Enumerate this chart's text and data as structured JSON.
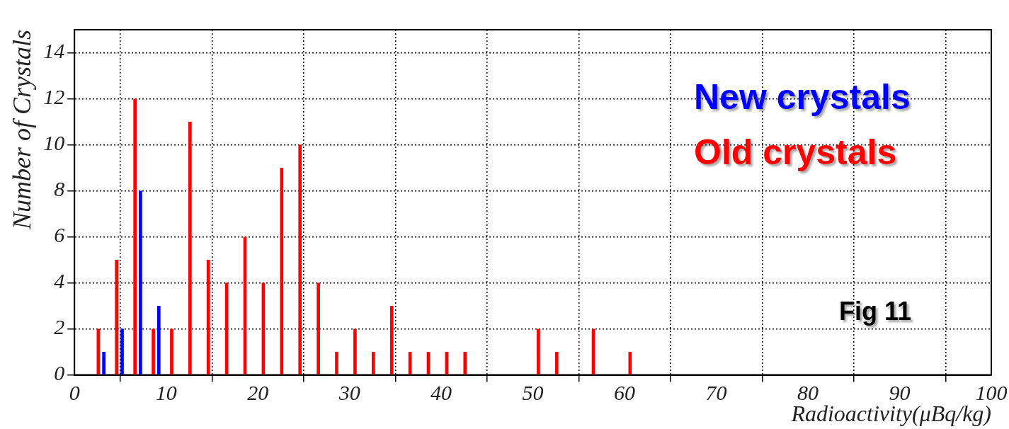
{
  "chart_data": {
    "type": "histogram",
    "xlabel": "Radioactivity(μBq/kg)",
    "ylabel": "Number of Crystals",
    "bins": [
      2,
      4,
      6,
      8,
      10,
      12,
      14,
      16,
      18,
      20,
      22,
      24,
      26,
      28,
      30,
      32,
      34,
      36,
      38,
      40,
      42,
      44,
      46,
      48,
      50,
      52,
      54,
      56,
      58,
      60,
      62
    ],
    "series": [
      {
        "name": "Old crystals",
        "color": "#ff0000",
        "values": [
          2,
          5,
          12,
          2,
          2,
          11,
          5,
          4,
          6,
          4,
          9,
          10,
          4,
          1,
          2,
          1,
          3,
          1,
          1,
          1,
          1,
          0,
          0,
          0,
          2,
          1,
          0,
          2,
          0,
          1
        ]
      },
      {
        "name": "New crystals",
        "color": "#0000ff",
        "values": [
          1,
          2,
          8,
          3,
          0,
          0,
          0,
          0,
          0,
          0,
          0,
          0,
          0,
          0,
          0,
          0,
          0,
          0,
          0,
          0,
          0,
          0,
          0,
          0,
          0,
          0,
          0,
          0,
          0,
          0
        ]
      }
    ],
    "xlim": [
      0,
      100
    ],
    "xticks": [
      0,
      10,
      20,
      30,
      40,
      50,
      60,
      70,
      80,
      90,
      100
    ],
    "ylim": [
      0,
      15
    ],
    "yticks": [
      0,
      2,
      4,
      6,
      8,
      10,
      12,
      14
    ],
    "grid": true,
    "legend": "top right",
    "annotations": [
      "Fig 11"
    ]
  }
}
